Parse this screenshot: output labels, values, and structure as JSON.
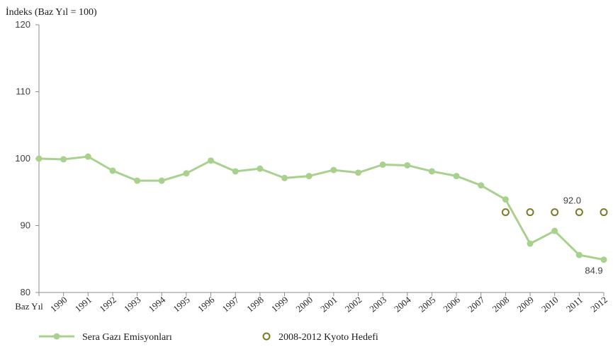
{
  "chart_data": {
    "type": "line",
    "ylabel": "İndeks (Baz Yıl = 100)",
    "ylim": [
      80,
      120
    ],
    "yticks": [
      "80",
      "90",
      "100",
      "110",
      "120"
    ],
    "x": [
      "Baz Yıl",
      "1990",
      "1991",
      "1992",
      "1993",
      "1994",
      "1995",
      "1996",
      "1997",
      "1998",
      "1999",
      "2000",
      "2001",
      "2002",
      "2003",
      "2004",
      "2005",
      "2006",
      "2007",
      "2008",
      "2009",
      "2010",
      "2011",
      "2012"
    ],
    "series": [
      {
        "name": "Sera Gazı Emisyonları",
        "color": "#a9d18e",
        "marker": "filled-circle",
        "values": [
          100.0,
          99.9,
          100.3,
          98.2,
          96.7,
          96.7,
          97.8,
          99.7,
          98.1,
          98.5,
          97.1,
          97.4,
          98.3,
          97.9,
          99.1,
          99.0,
          98.1,
          97.4,
          96.0,
          93.9,
          87.3,
          89.2,
          85.6,
          84.9
        ]
      },
      {
        "name": "2008-2012 Kyoto Hedefi",
        "color": "#7a7a2a",
        "marker": "hollow-circle",
        "x": [
          "2008",
          "2009",
          "2010",
          "2011",
          "2012"
        ],
        "values": [
          92.0,
          92.0,
          92.0,
          92.0,
          92.0
        ]
      }
    ],
    "annotations": [
      {
        "text": "92.0",
        "x": "2011",
        "y": 92.0
      },
      {
        "text": "84.9",
        "x": "2012",
        "y": 84.9
      }
    ],
    "grid": false,
    "legend_position": "bottom-left"
  }
}
